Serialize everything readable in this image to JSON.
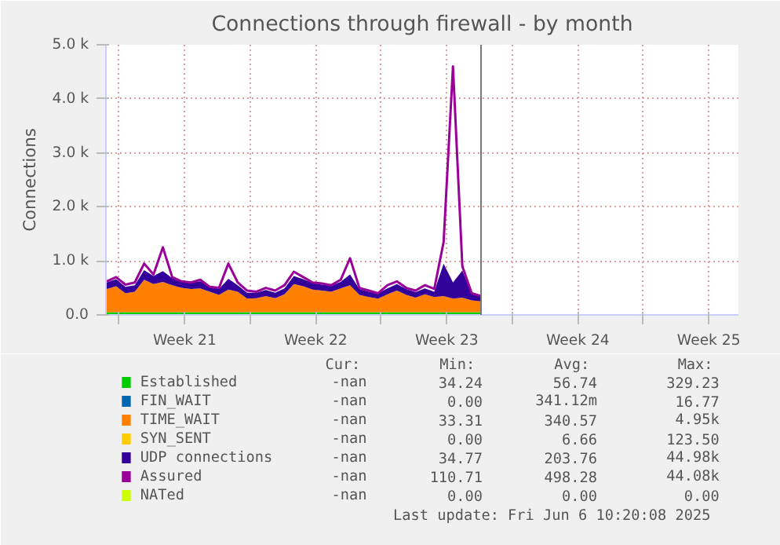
{
  "chart_data": {
    "type": "area",
    "title": "Connections through firewall - by month",
    "ylabel": "Connections",
    "stacked": true,
    "legend": "bottom",
    "grid": true,
    "x": [
      "2025-05-18T08:00",
      "2025-05-18T20:00",
      "2025-05-19T08:00",
      "2025-05-19T20:00",
      "2025-05-20T08:00",
      "2025-05-20T20:00",
      "2025-05-21T08:00",
      "2025-05-21T20:00",
      "2025-05-22T08:00",
      "2025-05-22T20:00",
      "2025-05-23T08:00",
      "2025-05-23T20:00",
      "2025-05-24T08:00",
      "2025-05-24T20:00",
      "2025-05-25T08:00",
      "2025-05-25T20:00",
      "2025-05-26T08:00",
      "2025-05-26T20:00",
      "2025-05-27T08:00",
      "2025-05-27T20:00",
      "2025-05-28T08:00",
      "2025-05-28T20:00",
      "2025-05-29T08:00",
      "2025-05-29T20:00",
      "2025-05-30T08:00",
      "2025-05-30T20:00",
      "2025-05-31T08:00",
      "2025-05-31T20:00",
      "2025-06-01T08:00",
      "2025-06-01T20:00",
      "2025-06-02T08:00",
      "2025-06-02T20:00",
      "2025-06-03T08:00",
      "2025-06-03T20:00",
      "2025-06-04T08:00",
      "2025-06-04T20:00",
      "2025-06-05T08:00",
      "2025-06-05T20:00",
      "2025-06-06T08:00",
      "2025-06-06T20:00",
      "2025-06-07T08:00"
    ],
    "xlim": [
      "2025-05-18T07:00",
      "2025-06-21T02:00"
    ],
    "xticks": [
      {
        "value": "2025-05-19",
        "label": null
      },
      {
        "value": "2025-05-22T12:00",
        "label": "Week 21"
      },
      {
        "value": "2025-05-26",
        "label": null
      },
      {
        "value": "2025-05-29T12:00",
        "label": "Week 22"
      },
      {
        "value": "2025-06-02",
        "label": null
      },
      {
        "value": "2025-06-05T12:00",
        "label": "Week 23"
      },
      {
        "value": "2025-06-09",
        "label": null
      },
      {
        "value": "2025-06-12T12:00",
        "label": "Week 24"
      },
      {
        "value": "2025-06-16",
        "label": null
      },
      {
        "value": "2025-06-19T12:00",
        "label": "Week 25"
      }
    ],
    "ylim": [
      0,
      5000
    ],
    "yticks": [
      {
        "value": 0,
        "label": "0.0"
      },
      {
        "value": 1000,
        "label": "1.0 k"
      },
      {
        "value": 2000,
        "label": "2.0 k"
      },
      {
        "value": 3000,
        "label": "3.0 k"
      },
      {
        "value": 4000,
        "label": "4.0 k"
      },
      {
        "value": 5000,
        "label": "5.0 k"
      }
    ],
    "series": [
      {
        "name": "Established",
        "color": "#00cc00",
        "values": [
          50,
          50,
          50,
          50,
          50,
          50,
          50,
          50,
          50,
          50,
          50,
          50,
          50,
          50,
          50,
          50,
          50,
          50,
          50,
          50,
          50,
          50,
          50,
          50,
          50,
          50,
          50,
          50,
          50,
          50,
          50,
          50,
          50,
          50,
          50,
          50,
          50,
          50,
          50,
          50,
          50
        ]
      },
      {
        "name": "FIN_WAIT",
        "color": "#0066b3",
        "values": [
          null,
          null,
          null,
          null,
          null,
          null,
          null,
          null,
          null,
          null,
          null,
          null,
          null,
          null,
          null,
          null,
          null,
          null,
          null,
          null,
          null,
          null,
          null,
          null,
          null,
          null,
          null,
          null,
          null,
          null,
          null,
          null,
          null,
          null,
          null,
          null,
          null,
          null,
          null,
          null,
          null
        ]
      },
      {
        "name": "TIME_WAIT",
        "color": "#ff8000",
        "values": [
          430,
          480,
          350,
          380,
          600,
          520,
          560,
          500,
          450,
          430,
          440,
          380,
          320,
          420,
          380,
          250,
          260,
          300,
          260,
          330,
          520,
          480,
          420,
          400,
          380,
          440,
          500,
          320,
          280,
          250,
          330,
          400,
          320,
          270,
          330,
          280,
          300,
          250,
          270,
          220,
          200
        ]
      },
      {
        "name": "SYN_SENT",
        "color": "#ffcc00",
        "values": [
          null,
          null,
          null,
          null,
          null,
          null,
          null,
          null,
          null,
          null,
          null,
          null,
          null,
          null,
          null,
          null,
          null,
          null,
          null,
          null,
          null,
          null,
          null,
          null,
          null,
          null,
          null,
          null,
          null,
          null,
          null,
          null,
          null,
          null,
          null,
          null,
          null,
          null,
          null,
          null,
          null
        ]
      },
      {
        "name": "UDP connections",
        "color": "#330099",
        "values": [
          120,
          130,
          120,
          120,
          180,
          150,
          200,
          130,
          120,
          120,
          130,
          110,
          110,
          200,
          120,
          110,
          100,
          110,
          100,
          110,
          150,
          130,
          120,
          110,
          110,
          120,
          200,
          110,
          100,
          100,
          110,
          120,
          110,
          100,
          110,
          100,
          600,
          300,
          500,
          120,
          100
        ]
      },
      {
        "name": "Assured",
        "color": "#990099",
        "type": "line",
        "values": [
          620,
          700,
          560,
          600,
          950,
          750,
          1250,
          700,
          620,
          600,
          650,
          520,
          500,
          950,
          600,
          450,
          430,
          500,
          450,
          550,
          800,
          700,
          600,
          580,
          550,
          650,
          1050,
          500,
          450,
          400,
          550,
          620,
          500,
          450,
          550,
          480,
          1350,
          4600,
          900,
          400,
          350
        ]
      },
      {
        "name": "NATed",
        "color": "#ccff00",
        "type": "line",
        "values": [
          null,
          null,
          null,
          null,
          null,
          null,
          null,
          null,
          null,
          null,
          null,
          null,
          null,
          null,
          null,
          null,
          null,
          null,
          null,
          null,
          null,
          null,
          null,
          null,
          null,
          null,
          null,
          null,
          null,
          null,
          null,
          null,
          null,
          null,
          null,
          null,
          null,
          null,
          null,
          null,
          null
        ]
      }
    ],
    "ref_lines": [
      {
        "axis": "x",
        "value": "2025-06-07T08:00",
        "color": "#777777"
      }
    ],
    "annotations": [
      "Cur:",
      "Min:",
      "Avg:",
      "Max:",
      "-nan",
      "34.24",
      "56.74",
      "329.23",
      "-nan",
      "0.00",
      "341.12m",
      "16.77",
      "-nan",
      "33.31",
      "340.57",
      "4.95k",
      "-nan",
      "0.00",
      "6.66",
      "123.50",
      "-nan",
      "34.77",
      "203.76",
      "44.98k",
      "-nan",
      "110.71",
      "498.28",
      "44.08k",
      "-nan",
      "0.00",
      "0.00",
      "0.00",
      "Last update: Fri Jun  6 10:20:08 2025"
    ]
  }
}
